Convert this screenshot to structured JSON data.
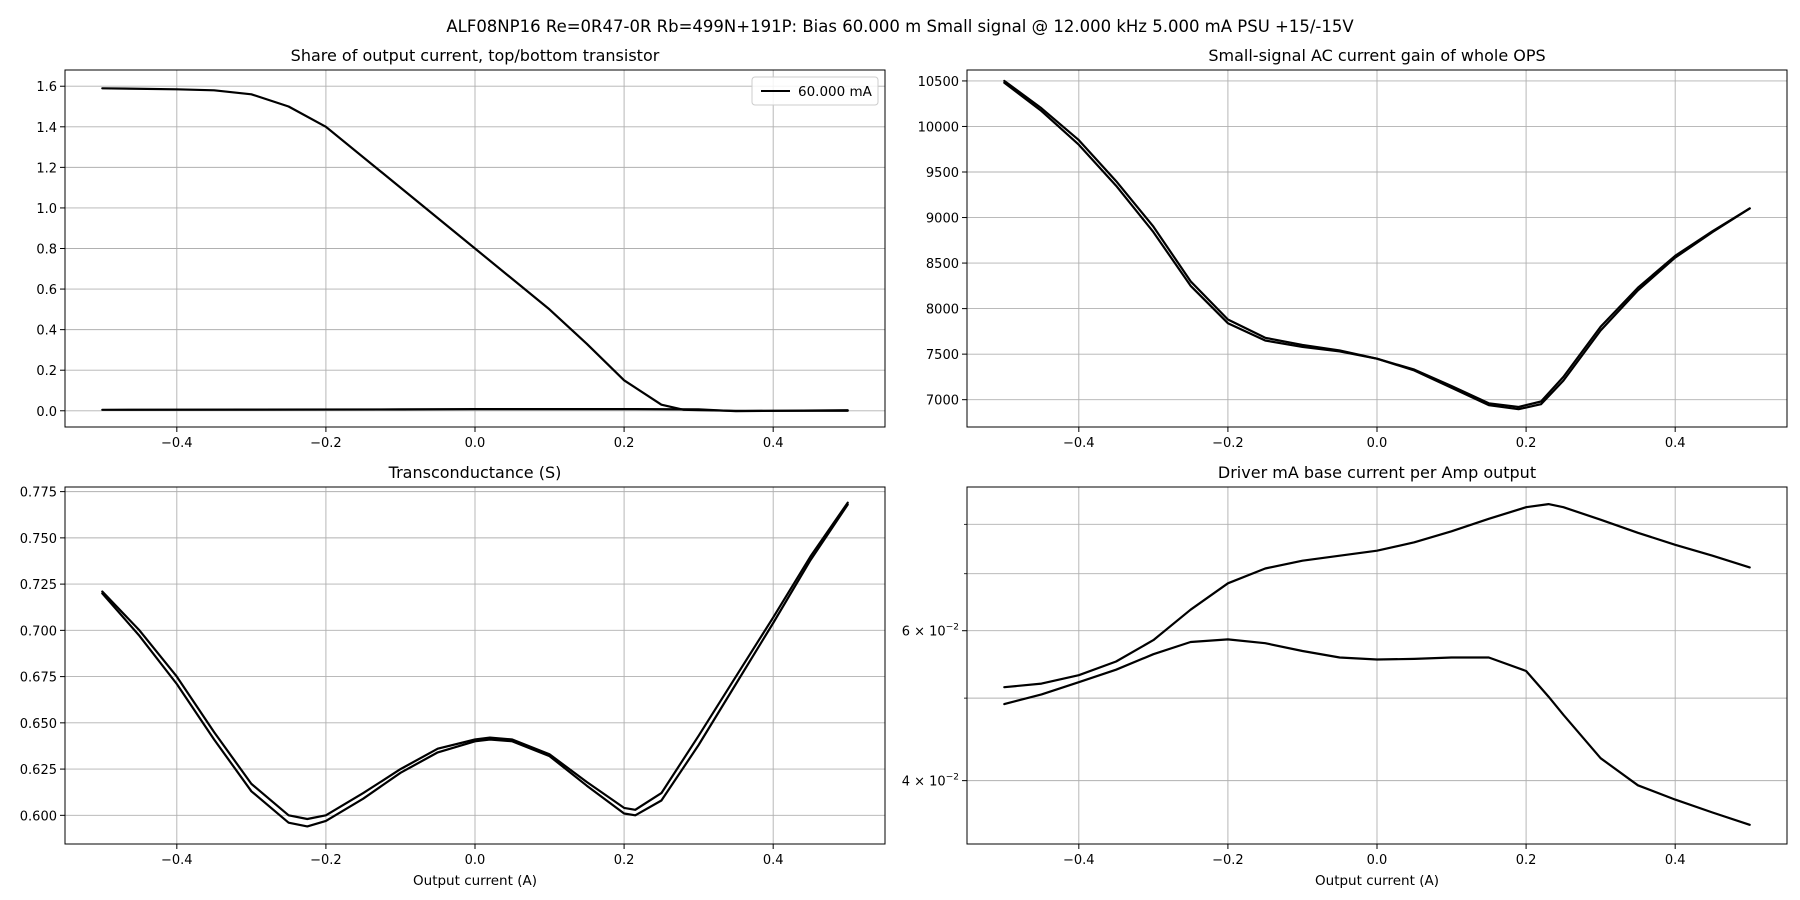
{
  "figure": {
    "suptitle": "ALF08NP16 Re=0R47-0R Rb=499N+191P: Bias 60.000 m Small signal @ 12.000 kHz 5.000 mA PSU +15/-15V",
    "line_color": "#000000",
    "grid_color": "#b0b0b0"
  },
  "chart_data": [
    {
      "type": "line",
      "title": "Share of output current, top/bottom transistor",
      "xlabel": "",
      "ylabel": "",
      "xlim": [
        -0.55,
        0.55
      ],
      "ylim": [
        -0.08,
        1.68
      ],
      "xticks": [
        -0.4,
        -0.2,
        0.0,
        0.2,
        0.4
      ],
      "xtick_labels": [
        "−0.4",
        "−0.2",
        "0.0",
        "0.2",
        "0.4"
      ],
      "yticks": [
        0.0,
        0.2,
        0.4,
        0.6,
        0.8,
        1.0,
        1.2,
        1.4,
        1.6
      ],
      "ytick_labels": [
        "0.0",
        "0.2",
        "0.4",
        "0.6",
        "0.8",
        "1.0",
        "1.2",
        "1.4",
        "1.6"
      ],
      "grid": true,
      "legend": {
        "position": "upper-right",
        "entries": [
          "60.000 mA"
        ]
      },
      "series": [
        {
          "name": "60.000 mA",
          "x": [
            -0.5,
            -0.4,
            -0.35,
            -0.3,
            -0.25,
            -0.2,
            -0.1,
            0.0,
            0.1,
            0.15,
            0.2,
            0.25,
            0.28,
            0.3,
            0.35,
            0.4,
            0.5
          ],
          "y": [
            1.59,
            1.585,
            1.58,
            1.56,
            1.5,
            1.4,
            1.1,
            0.8,
            0.5,
            0.33,
            0.15,
            0.03,
            0.005,
            0.003,
            0.0,
            0.0,
            0.0
          ]
        },
        {
          "x": [
            -0.5,
            -0.3,
            -0.1,
            0.0,
            0.1,
            0.2,
            0.3,
            0.35,
            0.4,
            0.5
          ],
          "y": [
            0.005,
            0.006,
            0.007,
            0.008,
            0.008,
            0.008,
            0.007,
            -0.002,
            0.0,
            0.003
          ]
        }
      ]
    },
    {
      "type": "line",
      "title": "Small-signal AC current gain of whole OPS",
      "xlabel": "",
      "ylabel": "",
      "xlim": [
        -0.55,
        0.55
      ],
      "ylim": [
        6700,
        10620
      ],
      "xticks": [
        -0.4,
        -0.2,
        0.0,
        0.2,
        0.4
      ],
      "xtick_labels": [
        "−0.4",
        "−0.2",
        "0.0",
        "0.2",
        "0.4"
      ],
      "yticks": [
        7000,
        7500,
        8000,
        8500,
        9000,
        9500,
        10000,
        10500
      ],
      "ytick_labels": [
        "7000",
        "7500",
        "8000",
        "8500",
        "9000",
        "9500",
        "10000",
        "10500"
      ],
      "grid": true,
      "series": [
        {
          "x": [
            -0.5,
            -0.45,
            -0.4,
            -0.35,
            -0.3,
            -0.25,
            -0.2,
            -0.15,
            -0.1,
            -0.05,
            0.0,
            0.05,
            0.1,
            0.15,
            0.19,
            0.22,
            0.25,
            0.3,
            0.35,
            0.4,
            0.45,
            0.5
          ],
          "y": [
            10500,
            10200,
            9850,
            9400,
            8900,
            8300,
            7880,
            7680,
            7600,
            7540,
            7450,
            7330,
            7150,
            6960,
            6920,
            6980,
            7250,
            7800,
            8230,
            8580,
            8850,
            9100
          ]
        },
        {
          "x": [
            -0.5,
            -0.45,
            -0.4,
            -0.35,
            -0.3,
            -0.25,
            -0.2,
            -0.15,
            -0.1,
            -0.05,
            0.0,
            0.05,
            0.1,
            0.15,
            0.19,
            0.22,
            0.25,
            0.3,
            0.35,
            0.4,
            0.45,
            0.5
          ],
          "y": [
            10480,
            10170,
            9800,
            9350,
            8840,
            8250,
            7840,
            7650,
            7580,
            7530,
            7450,
            7320,
            7130,
            6940,
            6895,
            6950,
            7210,
            7760,
            8200,
            8560,
            8840,
            9100
          ]
        }
      ]
    },
    {
      "type": "line",
      "title": "Transconductance (S)",
      "xlabel": "Output current (A)",
      "ylabel": "",
      "xlim": [
        -0.55,
        0.55
      ],
      "ylim": [
        0.5845,
        0.7775
      ],
      "xticks": [
        -0.4,
        -0.2,
        0.0,
        0.2,
        0.4
      ],
      "xtick_labels": [
        "−0.4",
        "−0.2",
        "0.0",
        "0.2",
        "0.4"
      ],
      "yticks": [
        0.6,
        0.625,
        0.65,
        0.675,
        0.7,
        0.725,
        0.75,
        0.775
      ],
      "ytick_labels": [
        "0.600",
        "0.625",
        "0.650",
        "0.675",
        "0.700",
        "0.725",
        "0.750",
        "0.775"
      ],
      "grid": true,
      "series": [
        {
          "x": [
            -0.5,
            -0.45,
            -0.4,
            -0.35,
            -0.3,
            -0.25,
            -0.225,
            -0.2,
            -0.15,
            -0.1,
            -0.05,
            0.0,
            0.02,
            0.05,
            0.1,
            0.15,
            0.2,
            0.215,
            0.25,
            0.3,
            0.35,
            0.4,
            0.45,
            0.5
          ],
          "y": [
            0.721,
            0.7,
            0.675,
            0.645,
            0.617,
            0.6,
            0.598,
            0.6,
            0.612,
            0.625,
            0.636,
            0.641,
            0.642,
            0.641,
            0.633,
            0.618,
            0.604,
            0.603,
            0.612,
            0.643,
            0.675,
            0.707,
            0.74,
            0.769
          ]
        },
        {
          "x": [
            -0.5,
            -0.45,
            -0.4,
            -0.35,
            -0.3,
            -0.25,
            -0.225,
            -0.2,
            -0.15,
            -0.1,
            -0.05,
            0.0,
            0.02,
            0.05,
            0.1,
            0.15,
            0.2,
            0.215,
            0.25,
            0.3,
            0.35,
            0.4,
            0.45,
            0.5
          ],
          "y": [
            0.72,
            0.697,
            0.671,
            0.641,
            0.613,
            0.596,
            0.594,
            0.597,
            0.609,
            0.623,
            0.634,
            0.64,
            0.641,
            0.64,
            0.632,
            0.616,
            0.601,
            0.6,
            0.608,
            0.638,
            0.671,
            0.704,
            0.738,
            0.768
          ]
        }
      ]
    },
    {
      "type": "line",
      "title": "Driver mA base current per Amp output",
      "xlabel": "Output current (A)",
      "ylabel": "",
      "log_y": true,
      "xlim": [
        -0.55,
        0.55
      ],
      "ylim": [
        0.0337,
        0.0885
      ],
      "xticks": [
        -0.4,
        -0.2,
        0.0,
        0.2,
        0.4
      ],
      "xtick_labels": [
        "−0.4",
        "−0.2",
        "0.0",
        "0.2",
        "0.4"
      ],
      "yticks_major": [
        0.04,
        0.06
      ],
      "ytick_labels_major": [
        "4 × 10",
        "6 × 10"
      ],
      "ytick_exponent": "−2",
      "yticks_minor": [
        0.05,
        0.07,
        0.08
      ],
      "grid": true,
      "series": [
        {
          "x": [
            -0.5,
            -0.45,
            -0.4,
            -0.35,
            -0.3,
            -0.25,
            -0.2,
            -0.15,
            -0.1,
            -0.05,
            0.0,
            0.05,
            0.1,
            0.15,
            0.2,
            0.23,
            0.25,
            0.3,
            0.35,
            0.4,
            0.45,
            0.5
          ],
          "y": [
            0.0515,
            0.052,
            0.0532,
            0.0552,
            0.0585,
            0.0635,
            0.0682,
            0.071,
            0.0725,
            0.0735,
            0.0745,
            0.0762,
            0.0785,
            0.0812,
            0.0838,
            0.0845,
            0.0838,
            0.081,
            0.0782,
            0.0757,
            0.0735,
            0.0712
          ]
        },
        {
          "x": [
            -0.5,
            -0.45,
            -0.4,
            -0.35,
            -0.3,
            -0.25,
            -0.2,
            -0.15,
            -0.1,
            -0.05,
            0.0,
            0.05,
            0.1,
            0.15,
            0.2,
            0.23,
            0.25,
            0.3,
            0.35,
            0.4,
            0.45,
            0.5
          ],
          "y": [
            0.0492,
            0.0505,
            0.0522,
            0.054,
            0.0563,
            0.0582,
            0.0586,
            0.058,
            0.0568,
            0.0558,
            0.0555,
            0.0556,
            0.0558,
            0.0558,
            0.0538,
            0.0502,
            0.0478,
            0.0425,
            0.0395,
            0.038,
            0.0367,
            0.0355
          ]
        }
      ]
    }
  ]
}
